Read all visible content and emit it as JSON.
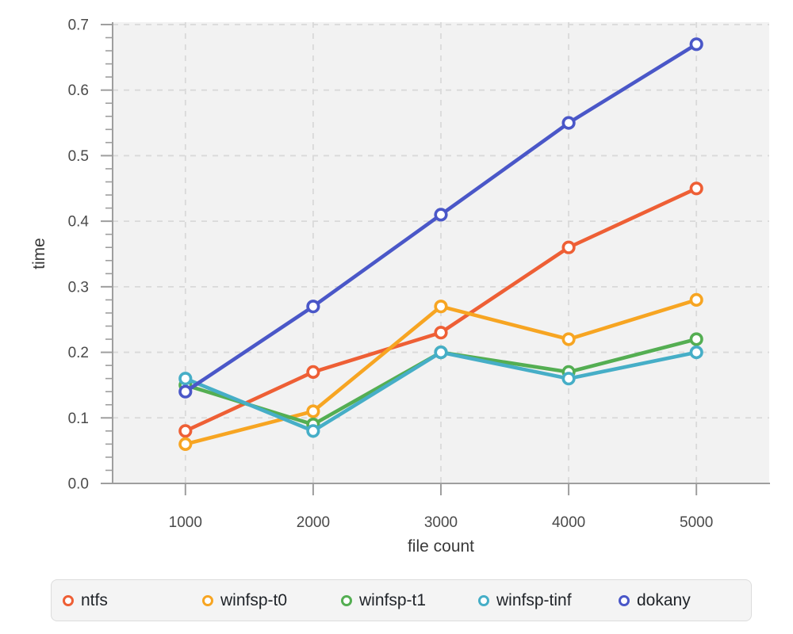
{
  "chart_data": {
    "type": "line",
    "title": "",
    "xlabel": "file count",
    "ylabel": "time",
    "x": [
      1000,
      2000,
      3000,
      4000,
      5000
    ],
    "xtick_labels": [
      "1000",
      "2000",
      "3000",
      "4000",
      "5000"
    ],
    "yticks": [
      0.0,
      0.1,
      0.2,
      0.3,
      0.4,
      0.5,
      0.6,
      0.7
    ],
    "ytick_labels": [
      "0.0",
      "0.1",
      "0.2",
      "0.3",
      "0.4",
      "0.5",
      "0.6",
      "0.7"
    ],
    "ylim": [
      0,
      0.7
    ],
    "grid": true,
    "marker": "open-circle",
    "legend_position": "bottom",
    "series": [
      {
        "name": "ntfs",
        "color": "#ee5f35",
        "values": [
          0.08,
          0.17,
          0.23,
          0.36,
          0.45
        ]
      },
      {
        "name": "winfsp-t0",
        "color": "#f7a522",
        "values": [
          0.06,
          0.11,
          0.27,
          0.22,
          0.28
        ]
      },
      {
        "name": "winfsp-t1",
        "color": "#54ae52",
        "values": [
          0.15,
          0.09,
          0.2,
          0.17,
          0.22
        ]
      },
      {
        "name": "winfsp-tinf",
        "color": "#46aec7",
        "values": [
          0.16,
          0.08,
          0.2,
          0.16,
          0.2
        ]
      },
      {
        "name": "dokany",
        "color": "#4a57c8",
        "values": [
          0.14,
          0.27,
          0.41,
          0.55,
          0.67
        ]
      }
    ]
  },
  "colors": {
    "plot_bg": "#f2f2f2",
    "grid": "#d9d9d9",
    "axis": "#9e9e9e",
    "tick_label": "#4a4a4a",
    "axis_label": "#3a3a3a",
    "legend_bg": "#f4f4f4",
    "legend_border": "#dcdcdc",
    "legend_text": "#1f2328",
    "marker_fill": "#ffffff"
  }
}
